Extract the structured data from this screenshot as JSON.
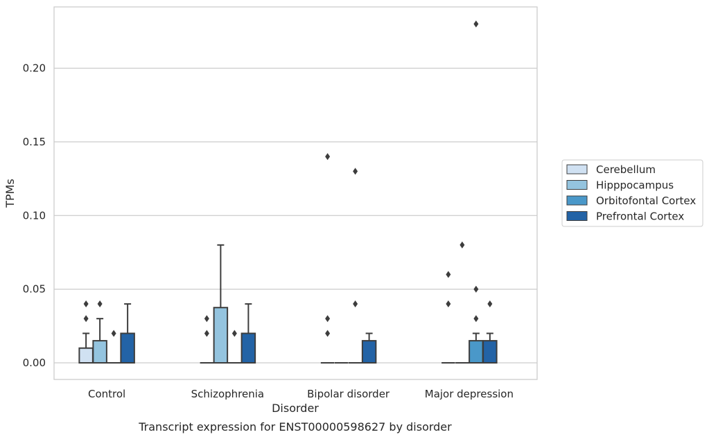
{
  "chart_data": {
    "type": "box",
    "caption": "Transcript expression for ENST00000598627 by disorder",
    "xlabel": "Disorder",
    "ylabel": "TPMs",
    "ylim": [
      -0.011,
      0.242
    ],
    "yticks": [
      "0.00",
      "0.05",
      "0.10",
      "0.15",
      "0.20"
    ],
    "ytick_values": [
      0,
      0.05,
      0.1,
      0.15,
      0.2
    ],
    "grid": "horizontal",
    "legend_position": "right",
    "categories": [
      "Control",
      "Schizophrenia",
      "Bipolar disorder",
      "Major depression"
    ],
    "series": [
      {
        "name": "Cerebellum",
        "color": "#d0e1f2",
        "boxes": [
          {
            "category": "Control",
            "q1": 0,
            "median": 0,
            "q3": 0.01,
            "whisker_low": 0,
            "whisker_high": 0.02,
            "outliers": [
              0.03,
              0.04
            ]
          },
          {
            "category": "Schizophrenia",
            "q1": 0,
            "median": 0,
            "q3": 0,
            "whisker_low": 0,
            "whisker_high": 0,
            "outliers": [
              0.02,
              0.03
            ]
          },
          {
            "category": "Bipolar disorder",
            "q1": 0,
            "median": 0,
            "q3": 0,
            "whisker_low": 0,
            "whisker_high": 0,
            "outliers": [
              0.02,
              0.03,
              0.14
            ]
          },
          {
            "category": "Major depression",
            "q1": 0,
            "median": 0,
            "q3": 0,
            "whisker_low": 0,
            "whisker_high": 0,
            "outliers": [
              0.04,
              0.06
            ]
          }
        ]
      },
      {
        "name": "Hipppocampus",
        "color": "#94c4df",
        "boxes": [
          {
            "category": "Control",
            "q1": 0,
            "median": 0,
            "q3": 0.015,
            "whisker_low": 0,
            "whisker_high": 0.03,
            "outliers": [
              0.04
            ]
          },
          {
            "category": "Schizophrenia",
            "q1": 0,
            "median": 0,
            "q3": 0.0375,
            "whisker_low": 0,
            "whisker_high": 0.08,
            "outliers": []
          },
          {
            "category": "Bipolar disorder",
            "q1": 0,
            "median": 0,
            "q3": 0,
            "whisker_low": 0,
            "whisker_high": 0,
            "outliers": []
          },
          {
            "category": "Major depression",
            "q1": 0,
            "median": 0,
            "q3": 0,
            "whisker_low": 0,
            "whisker_high": 0,
            "outliers": [
              0.08
            ]
          }
        ]
      },
      {
        "name": "Orbitofontal Cortex",
        "color": "#4a98c9",
        "boxes": [
          {
            "category": "Control",
            "q1": 0,
            "median": 0,
            "q3": 0,
            "whisker_low": 0,
            "whisker_high": 0,
            "outliers": [
              0.02
            ]
          },
          {
            "category": "Schizophrenia",
            "q1": 0,
            "median": 0,
            "q3": 0,
            "whisker_low": 0,
            "whisker_high": 0,
            "outliers": [
              0.02
            ]
          },
          {
            "category": "Bipolar disorder",
            "q1": 0,
            "median": 0,
            "q3": 0,
            "whisker_low": 0,
            "whisker_high": 0,
            "outliers": [
              0.04,
              0.13
            ]
          },
          {
            "category": "Major depression",
            "q1": 0,
            "median": 0,
            "q3": 0.015,
            "whisker_low": 0,
            "whisker_high": 0.02,
            "outliers": [
              0.03,
              0.05,
              0.23
            ]
          }
        ]
      },
      {
        "name": "Prefrontal Cortex",
        "color": "#2363a6",
        "boxes": [
          {
            "category": "Control",
            "q1": 0,
            "median": 0,
            "q3": 0.02,
            "whisker_low": 0,
            "whisker_high": 0.04,
            "outliers": []
          },
          {
            "category": "Schizophrenia",
            "q1": 0,
            "median": 0,
            "q3": 0.02,
            "whisker_low": 0,
            "whisker_high": 0.04,
            "outliers": []
          },
          {
            "category": "Bipolar disorder",
            "q1": 0,
            "median": 0,
            "q3": 0.015,
            "whisker_low": 0,
            "whisker_high": 0.02,
            "outliers": []
          },
          {
            "category": "Major depression",
            "q1": 0,
            "median": 0,
            "q3": 0.015,
            "whisker_low": 0,
            "whisker_high": 0.02,
            "outliers": [
              0.04
            ]
          }
        ]
      }
    ]
  }
}
